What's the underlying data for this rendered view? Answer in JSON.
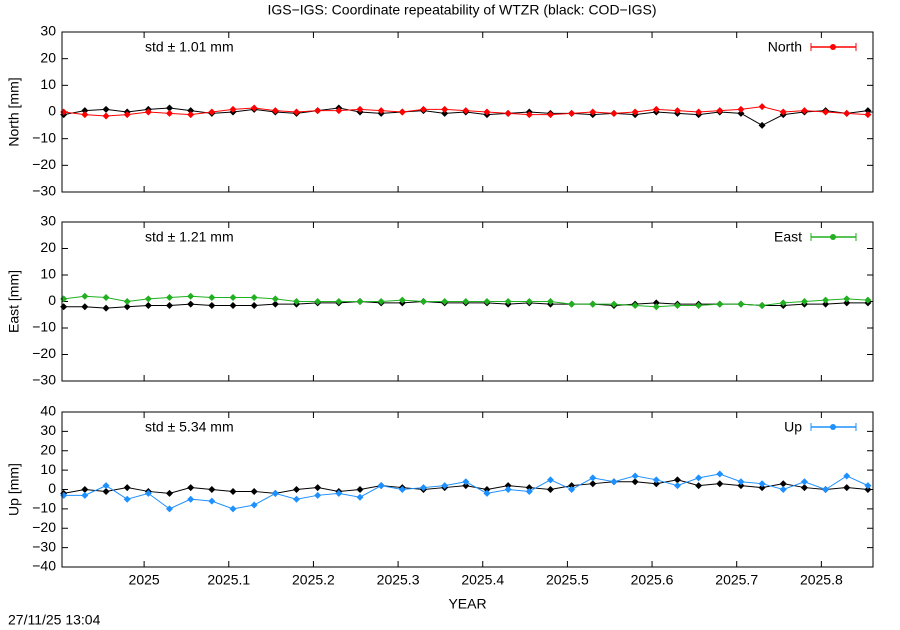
{
  "title": "IGS−IGS: Coordinate repeatability of WTZR (black: COD−IGS)",
  "footer": "27/11/25 13:04",
  "chart_data": [
    {
      "type": "line",
      "ylabel": "North [mm]",
      "annotation": "std ± 1.01 mm",
      "xlim": [
        2024.903,
        2025.861
      ],
      "xticks": [
        2025,
        2025.1,
        2025.2,
        2025.3,
        2025.4,
        2025.5,
        2025.6,
        2025.7,
        2025.8
      ],
      "ylim": [
        -30,
        30
      ],
      "yticks": [
        {
          "value": -30,
          "label": "−30"
        },
        {
          "value": -20,
          "label": "−20"
        },
        {
          "value": -10,
          "label": "−10"
        },
        0,
        10,
        20,
        30
      ],
      "x": [
        2024.905,
        2024.93,
        2024.955,
        2024.98,
        2025.005,
        2025.03,
        2025.055,
        2025.08,
        2025.105,
        2025.13,
        2025.155,
        2025.18,
        2025.205,
        2025.23,
        2025.255,
        2025.28,
        2025.305,
        2025.33,
        2025.355,
        2025.38,
        2025.405,
        2025.43,
        2025.455,
        2025.48,
        2025.505,
        2025.53,
        2025.555,
        2025.58,
        2025.605,
        2025.63,
        2025.655,
        2025.68,
        2025.705,
        2025.73,
        2025.755,
        2025.78,
        2025.805,
        2025.83,
        2025.855
      ],
      "series": [
        {
          "color": "#000000",
          "values": [
            -1,
            0.5,
            1,
            0,
            1,
            1.5,
            0.5,
            -0.5,
            0,
            1,
            0,
            -0.5,
            0.5,
            1.5,
            0,
            -0.5,
            0,
            0.5,
            -0.5,
            0,
            -1,
            -0.5,
            0,
            -0.5,
            -0.5,
            -1,
            -0.5,
            -1,
            0,
            -0.5,
            -1,
            0,
            -0.5,
            -5,
            -1,
            0,
            0.5,
            -0.5,
            0.5
          ]
        },
        {
          "name": "North",
          "color": "#ff0000",
          "values": [
            0,
            -1,
            -1.5,
            -1,
            0,
            -0.5,
            -1,
            0,
            1,
            1.5,
            0.5,
            0,
            0.5,
            0.5,
            1,
            0.5,
            0,
            1,
            1,
            0.5,
            0,
            -0.5,
            -1,
            -1,
            -0.5,
            0,
            -0.5,
            0,
            1,
            0.5,
            0,
            0.5,
            1,
            2,
            0,
            0.5,
            0,
            -0.5,
            -1
          ]
        }
      ]
    },
    {
      "type": "line",
      "ylabel": "East [mm]",
      "annotation": "std ± 1.21 mm",
      "xlim": [
        2024.903,
        2025.861
      ],
      "xticks": [
        2025,
        2025.1,
        2025.2,
        2025.3,
        2025.4,
        2025.5,
        2025.6,
        2025.7,
        2025.8
      ],
      "ylim": [
        -30,
        30
      ],
      "yticks": [
        {
          "value": -30,
          "label": "−30"
        },
        {
          "value": -20,
          "label": "−20"
        },
        {
          "value": -10,
          "label": "−10"
        },
        0,
        10,
        20,
        30
      ],
      "x": [
        2024.905,
        2024.93,
        2024.955,
        2024.98,
        2025.005,
        2025.03,
        2025.055,
        2025.08,
        2025.105,
        2025.13,
        2025.155,
        2025.18,
        2025.205,
        2025.23,
        2025.255,
        2025.28,
        2025.305,
        2025.33,
        2025.355,
        2025.38,
        2025.405,
        2025.43,
        2025.455,
        2025.48,
        2025.505,
        2025.53,
        2025.555,
        2025.58,
        2025.605,
        2025.63,
        2025.655,
        2025.68,
        2025.705,
        2025.73,
        2025.755,
        2025.78,
        2025.805,
        2025.83,
        2025.855
      ],
      "series": [
        {
          "color": "#000000",
          "values": [
            -2,
            -2,
            -2.5,
            -2,
            -1.5,
            -1.5,
            -1,
            -1.5,
            -1.5,
            -1.5,
            -1,
            -1,
            -0.5,
            -0.5,
            0,
            -0.5,
            -0.5,
            0,
            -0.5,
            -0.5,
            -0.5,
            -1,
            -0.5,
            -1,
            -1,
            -1,
            -1.5,
            -1,
            -0.5,
            -1,
            -1,
            -1,
            -1,
            -1.5,
            -1.5,
            -1,
            -1,
            -0.5,
            -0.5
          ]
        },
        {
          "name": "East",
          "color": "#20b020",
          "values": [
            1,
            2,
            1.5,
            0,
            1,
            1.5,
            2,
            1.5,
            1.5,
            1.5,
            1,
            0,
            0,
            0,
            0,
            0,
            0.5,
            0,
            0,
            0,
            0,
            0,
            0,
            0,
            -1,
            -1,
            -1,
            -1.5,
            -2,
            -1.5,
            -1.5,
            -1,
            -1,
            -1.5,
            -0.5,
            0,
            0.5,
            1,
            0.5
          ]
        }
      ]
    },
    {
      "type": "line",
      "ylabel": "Up [mm]",
      "annotation": "std ± 5.34 mm",
      "xlabel": "YEAR",
      "xlim": [
        2024.903,
        2025.861
      ],
      "xticks": [
        2025,
        2025.1,
        2025.2,
        2025.3,
        2025.4,
        2025.5,
        2025.6,
        2025.7,
        2025.8
      ],
      "ylim": [
        -40,
        40
      ],
      "yticks": [
        {
          "value": -40,
          "label": "−40"
        },
        {
          "value": -30,
          "label": "−30"
        },
        {
          "value": -20,
          "label": "−20"
        },
        {
          "value": -10,
          "label": "−10"
        },
        0,
        10,
        20,
        30,
        40
      ],
      "x": [
        2024.905,
        2024.93,
        2024.955,
        2024.98,
        2025.005,
        2025.03,
        2025.055,
        2025.08,
        2025.105,
        2025.13,
        2025.155,
        2025.18,
        2025.205,
        2025.23,
        2025.255,
        2025.28,
        2025.305,
        2025.33,
        2025.355,
        2025.38,
        2025.405,
        2025.43,
        2025.455,
        2025.48,
        2025.505,
        2025.53,
        2025.555,
        2025.58,
        2025.605,
        2025.63,
        2025.655,
        2025.68,
        2025.705,
        2025.73,
        2025.755,
        2025.78,
        2025.805,
        2025.83,
        2025.855
      ],
      "series": [
        {
          "color": "#000000",
          "values": [
            -2,
            0,
            -1,
            1,
            -1,
            -2,
            1,
            0,
            -1,
            -1,
            -2,
            0,
            1,
            -1,
            0,
            2,
            1,
            0,
            1,
            2,
            0,
            2,
            1,
            0,
            2,
            3,
            4,
            4,
            3,
            5,
            2,
            3,
            2,
            1,
            3,
            1,
            0,
            1,
            0
          ]
        },
        {
          "name": "Up",
          "color": "#1e90ff",
          "values": [
            -3,
            -3,
            2,
            -5,
            -2,
            -10,
            -5,
            -6,
            -10,
            -8,
            -2,
            -5,
            -3,
            -2,
            -4,
            2,
            0,
            1,
            2,
            4,
            -2,
            0,
            -1,
            5,
            0,
            6,
            4,
            7,
            5,
            2,
            6,
            8,
            4,
            3,
            0,
            4,
            0,
            7,
            2
          ]
        }
      ]
    }
  ]
}
